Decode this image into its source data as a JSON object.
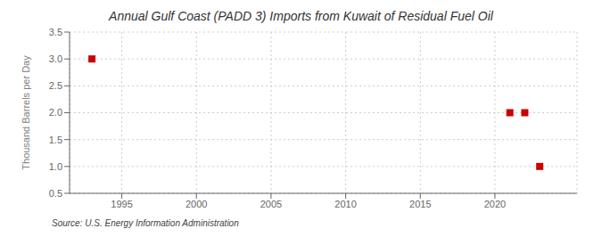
{
  "chart_data": {
    "type": "scatter",
    "title": "Annual Gulf Coast (PADD 3) Imports from Kuwait of Residual Fuel Oil",
    "y_label": "Thousand Barrels per Day",
    "annotation": "Source: U.S. Energy Information Administration",
    "x": [
      1993,
      2021,
      2022,
      2023
    ],
    "values": [
      3.0,
      2.0,
      2.0,
      1.0
    ],
    "color": "#cc0000",
    "marker": "square",
    "xlim": [
      1991.5,
      2025.5
    ],
    "ylim": [
      0.5,
      3.5
    ],
    "xticks": [
      1995,
      2000,
      2005,
      2010,
      2015,
      2020
    ],
    "yticks": [
      0.5,
      {
        "value": 1.0,
        "label": "1.0"
      },
      1.5,
      {
        "value": 2.0,
        "label": "2.0"
      },
      2.5,
      {
        "value": 3.0,
        "label": "3.0"
      },
      3.5
    ],
    "grid": true
  }
}
